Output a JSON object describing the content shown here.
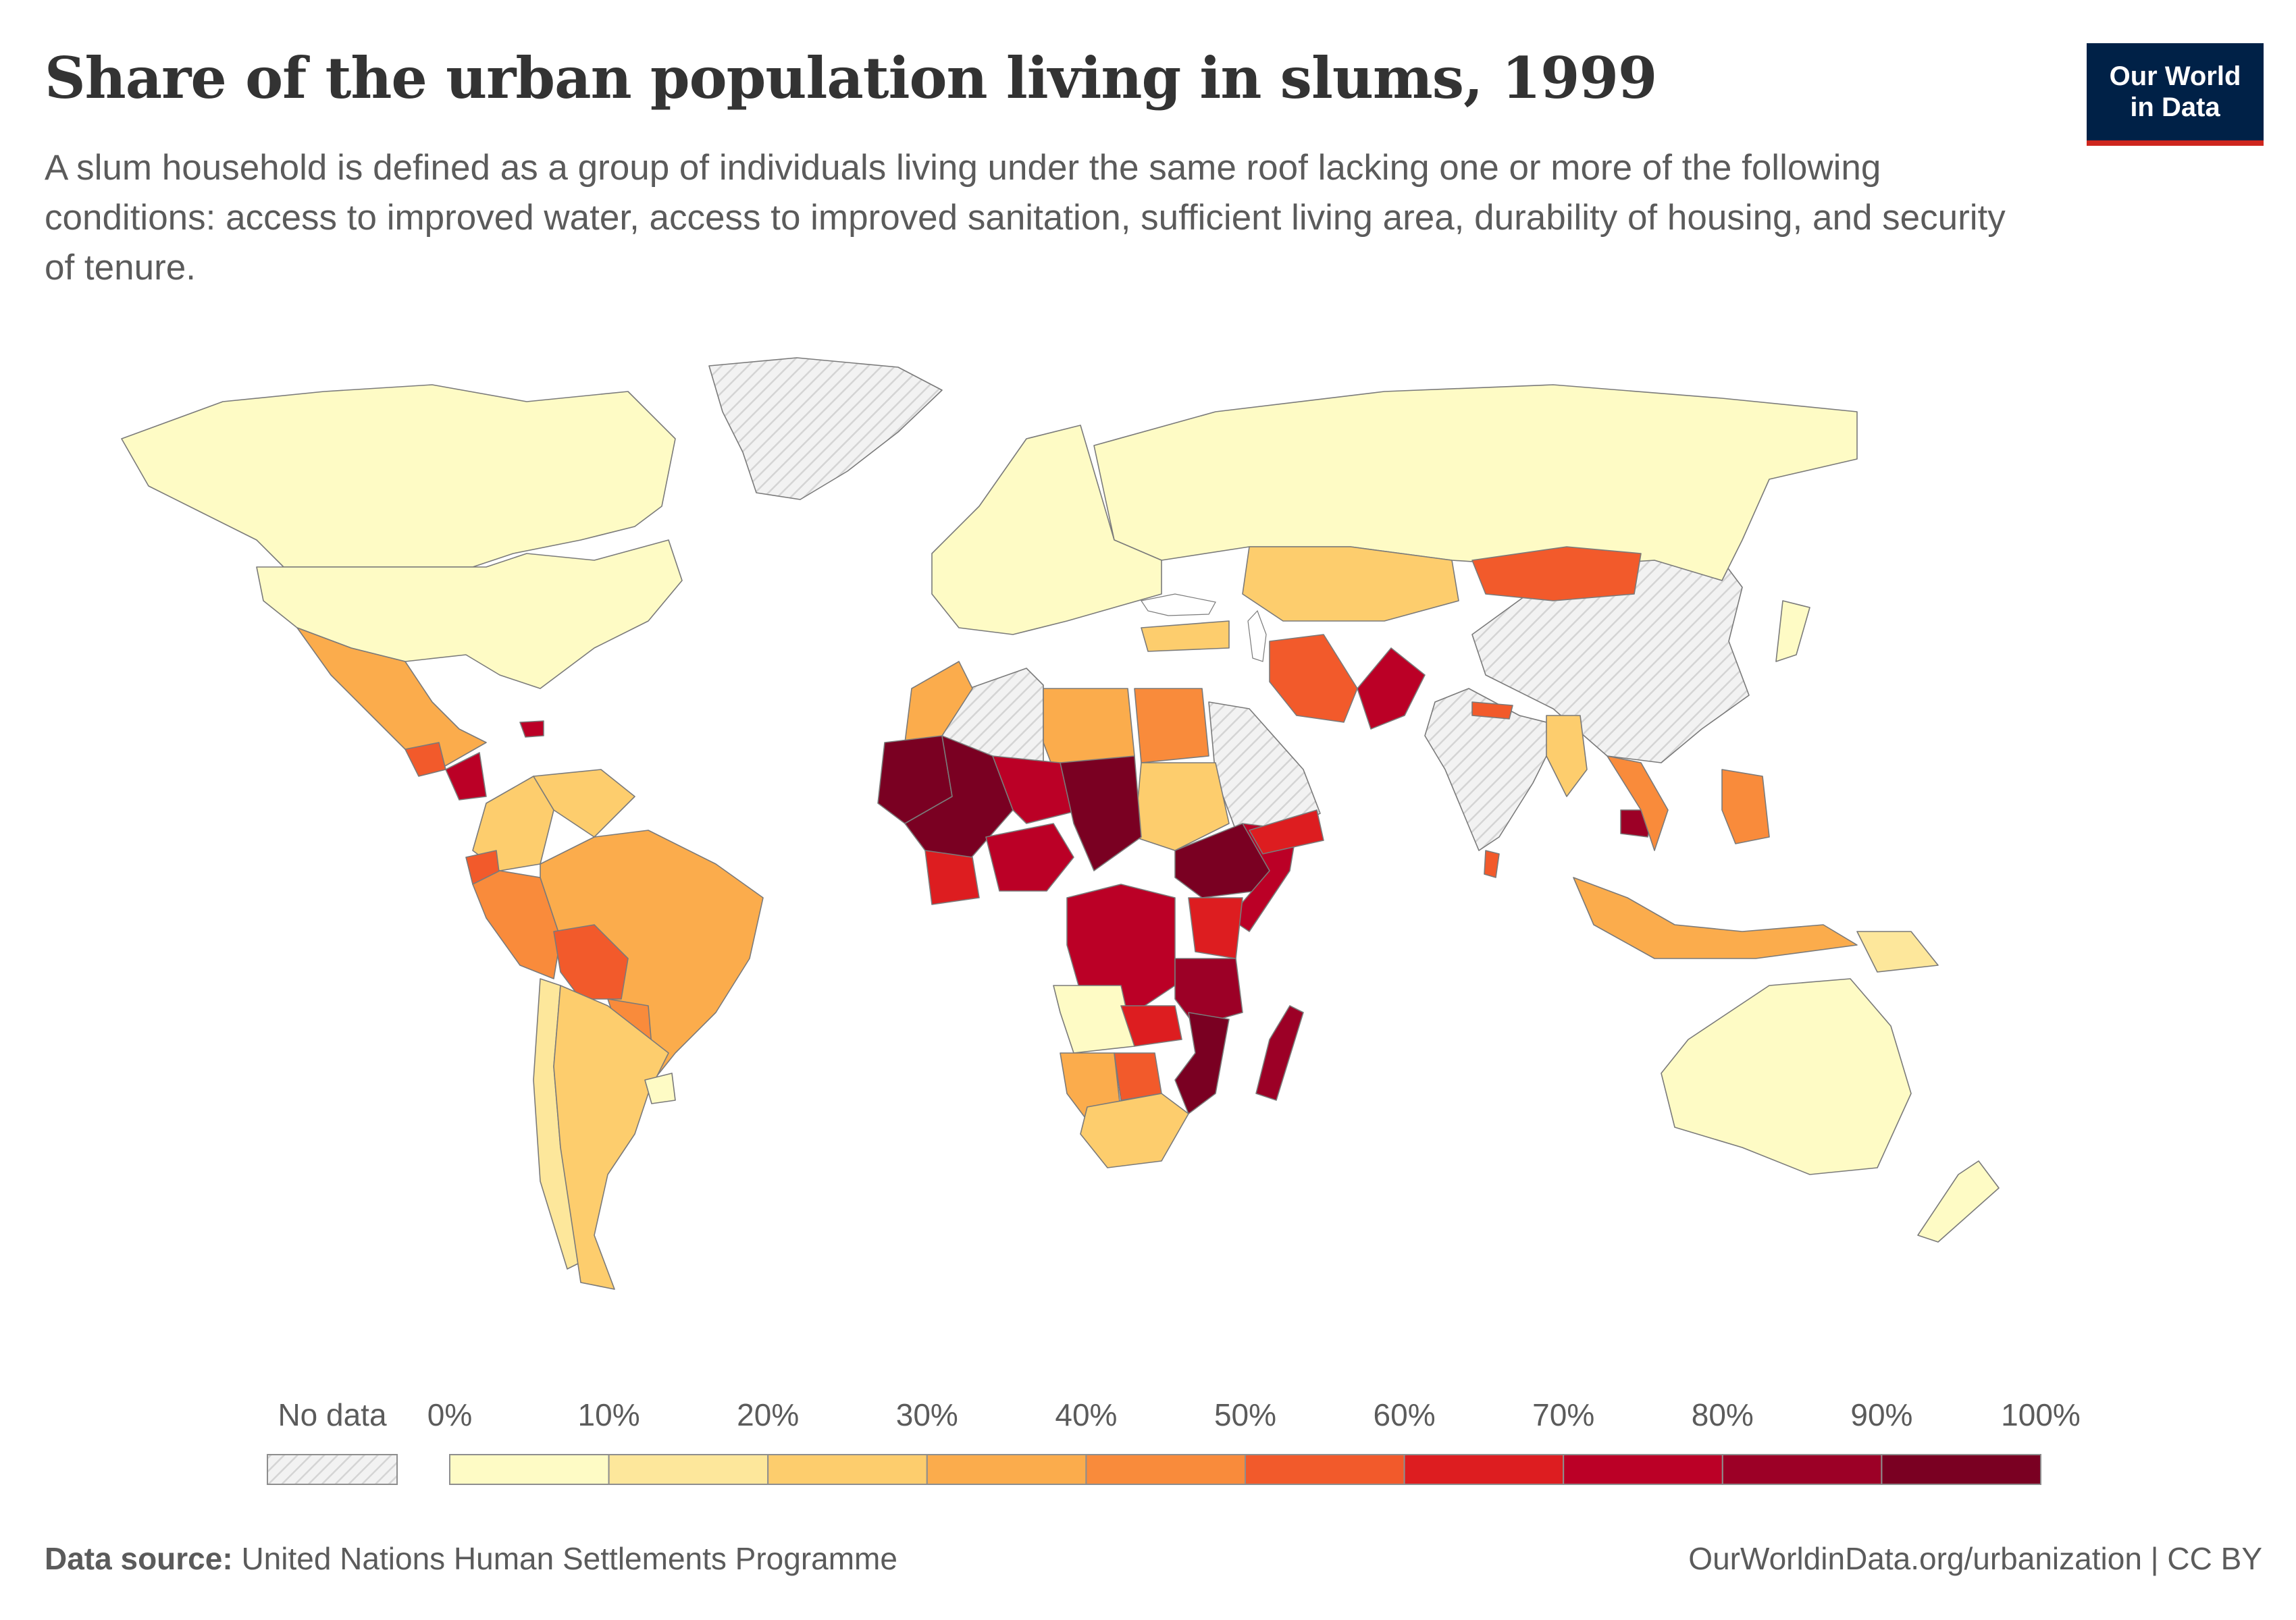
{
  "header": {
    "title": "Share of the urban population living in slums, 1999",
    "subtitle": "A slum household is defined as a group of individuals living under the same roof lacking one or more of the following conditions: access to improved water, access to improved sanitation, sufficient living area, durability of housing, and security of tenure."
  },
  "logo": {
    "line1": "Our World",
    "line2": "in Data"
  },
  "legend": {
    "no_data_label": "No data",
    "ticks": [
      "0%",
      "10%",
      "20%",
      "30%",
      "40%",
      "50%",
      "60%",
      "70%",
      "80%",
      "90%",
      "100%"
    ],
    "bins": [
      {
        "from": 0,
        "to": 10,
        "color": "#fefbc5"
      },
      {
        "from": 10,
        "to": 20,
        "color": "#fde79b"
      },
      {
        "from": 20,
        "to": 30,
        "color": "#fdcd6d"
      },
      {
        "from": 30,
        "to": 40,
        "color": "#fbac4c"
      },
      {
        "from": 40,
        "to": 50,
        "color": "#f98b3b"
      },
      {
        "from": 50,
        "to": 60,
        "color": "#f25a2b"
      },
      {
        "from": 60,
        "to": 70,
        "color": "#dd1d20"
      },
      {
        "from": 70,
        "to": 80,
        "color": "#bb0026"
      },
      {
        "from": 80,
        "to": 90,
        "color": "#9c0026"
      },
      {
        "from": 90,
        "to": 100,
        "color": "#7a0022"
      }
    ]
  },
  "map_data": {
    "regions": [
      {
        "name": "Canada",
        "value": 0
      },
      {
        "name": "United States",
        "value": 0
      },
      {
        "name": "Mexico",
        "value": 35
      },
      {
        "name": "Guatemala",
        "value": 55
      },
      {
        "name": "Nicaragua",
        "value": 75
      },
      {
        "name": "Haiti",
        "value": 70
      },
      {
        "name": "Colombia",
        "value": 25
      },
      {
        "name": "Venezuela",
        "value": 25
      },
      {
        "name": "Ecuador",
        "value": 55
      },
      {
        "name": "Peru",
        "value": 45
      },
      {
        "name": "Brazil",
        "value": 35
      },
      {
        "name": "Bolivia",
        "value": 55
      },
      {
        "name": "Paraguay",
        "value": 45
      },
      {
        "name": "Chile",
        "value": 15
      },
      {
        "name": "Argentina",
        "value": 25
      },
      {
        "name": "Uruguay",
        "value": 5
      },
      {
        "name": "Morocco",
        "value": 35
      },
      {
        "name": "Libya",
        "value": 35
      },
      {
        "name": "Egypt",
        "value": 45
      },
      {
        "name": "Sudan",
        "value": 25
      },
      {
        "name": "Mauritania",
        "value": 95
      },
      {
        "name": "Mali",
        "value": 90
      },
      {
        "name": "Niger",
        "value": 75
      },
      {
        "name": "Chad",
        "value": 95
      },
      {
        "name": "Ghana",
        "value": 65
      },
      {
        "name": "Nigeria",
        "value": 75
      },
      {
        "name": "Ethiopia",
        "value": 95
      },
      {
        "name": "Somalia",
        "value": 75
      },
      {
        "name": "DR Congo",
        "value": 75
      },
      {
        "name": "Tanzania",
        "value": 85
      },
      {
        "name": "Kenya",
        "value": 65
      },
      {
        "name": "Angola",
        "value": 8
      },
      {
        "name": "Zambia",
        "value": 65
      },
      {
        "name": "Mozambique",
        "value": 95
      },
      {
        "name": "Namibia",
        "value": 35
      },
      {
        "name": "Botswana",
        "value": 55
      },
      {
        "name": "South Africa",
        "value": 25
      },
      {
        "name": "Madagascar",
        "value": 85
      },
      {
        "name": "Russia",
        "value": 0
      },
      {
        "name": "Europe",
        "value": 0
      },
      {
        "name": "Turkey",
        "value": 25
      },
      {
        "name": "Kazakhstan",
        "value": 25
      },
      {
        "name": "Iran",
        "value": 55
      },
      {
        "name": "Pakistan",
        "value": 75
      },
      {
        "name": "Yemen",
        "value": 65
      },
      {
        "name": "Mongolia",
        "value": 55
      },
      {
        "name": "Nepal",
        "value": 55
      },
      {
        "name": "Myanmar",
        "value": 25
      },
      {
        "name": "Cambodia",
        "value": 85
      },
      {
        "name": "Vietnam",
        "value": 45
      },
      {
        "name": "Philippines",
        "value": 45
      },
      {
        "name": "Indonesia",
        "value": 30
      },
      {
        "name": "Papua New Guinea",
        "value": 15
      },
      {
        "name": "Australia",
        "value": 0
      },
      {
        "name": "New Zealand",
        "value": 0
      },
      {
        "name": "Japan",
        "value": 0
      },
      {
        "name": "Sri Lanka",
        "value": 55
      }
    ]
  },
  "footer": {
    "source_label": "Data source:",
    "source_value": "United Nations Human Settlements Programme",
    "right_text": "OurWorldinData.org/urbanization | CC BY"
  }
}
